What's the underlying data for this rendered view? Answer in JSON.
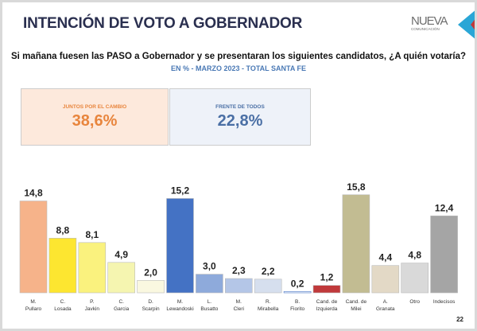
{
  "header": {
    "title": "INTENCIÓN DE VOTO A GOBERNADOR",
    "logo_line1": "NUEVA",
    "logo_line2": "COMUNICACIÓN"
  },
  "question": "Si mañana fuesen las PASO a Gobernador y se presentaran los siguientes candidatos, ¿A quién votaría?",
  "subtitle": "EN % - MARZO 2023 - TOTAL SANTA FE",
  "summary": [
    {
      "label": "JUNTOS POR EL CAMBIO",
      "value": "38,6%",
      "color": "#e8853d",
      "bg": "#fde9dc"
    },
    {
      "label": "FRENTE DE TODOS",
      "value": "22,8%",
      "color": "#4a6fa5",
      "bg": "#eef2f9"
    }
  ],
  "chart_data": {
    "type": "bar",
    "categories": [
      [
        "M.",
        "Pullaro"
      ],
      [
        "C.",
        "Losada"
      ],
      [
        "P.",
        "Javkin"
      ],
      [
        "C.",
        "Garcia"
      ],
      [
        "D.",
        "Scarpin"
      ],
      [
        "M.",
        "Lewandoski"
      ],
      [
        "L.",
        "Busatto"
      ],
      [
        "M.",
        "Cleri"
      ],
      [
        "R.",
        "Mirabella"
      ],
      [
        "B.",
        "Fiorito"
      ],
      [
        "Cand. de",
        "Izquierda"
      ],
      [
        "Cand. de",
        "Milei"
      ],
      [
        "A.",
        "Granata"
      ],
      [
        "Otro",
        ""
      ],
      [
        "Indecisos",
        ""
      ]
    ],
    "values": [
      14.8,
      8.8,
      8.1,
      4.9,
      2.0,
      15.2,
      3.0,
      2.3,
      2.2,
      0.2,
      1.2,
      15.8,
      4.4,
      4.8,
      12.4
    ],
    "labels": [
      "14,8",
      "8,8",
      "8,1",
      "4,9",
      "2,0",
      "15,2",
      "3,0",
      "2,3",
      "2,2",
      "0,2",
      "1,2",
      "15,8",
      "4,4",
      "4,8",
      "12,4"
    ],
    "colors": [
      "#f6b38a",
      "#fde630",
      "#faf27e",
      "#f5f5b0",
      "#faf8e0",
      "#4472c4",
      "#8eaadb",
      "#b4c6e7",
      "#d6dfee",
      "#ffffff",
      "#c0393b",
      "#c2bc92",
      "#e3d9c6",
      "#d9d9d9",
      "#a5a5a5"
    ],
    "ylim": [
      0,
      17
    ],
    "grid": false,
    "legend": "none"
  },
  "page_number": "22"
}
